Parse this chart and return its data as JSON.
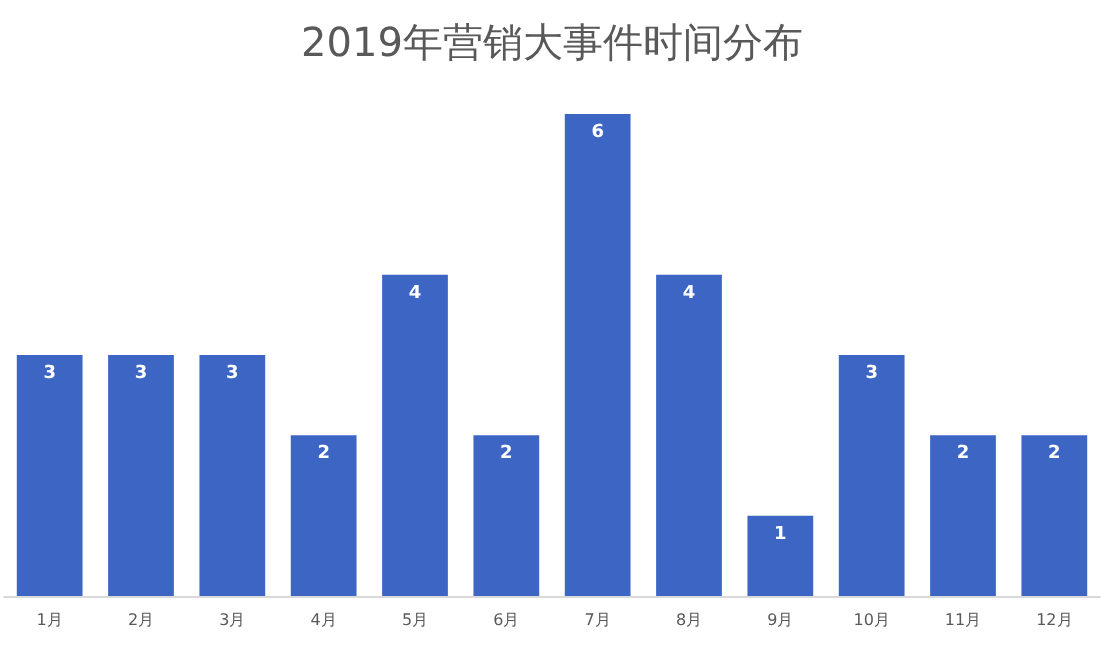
{
  "chart_data": {
    "type": "bar",
    "title": "2019年营销大事件时间分布",
    "categories": [
      "1月",
      "2月",
      "3月",
      "4月",
      "5月",
      "6月",
      "7月",
      "8月",
      "9月",
      "10月",
      "11月",
      "12月"
    ],
    "values": [
      3,
      3,
      3,
      2,
      4,
      2,
      6,
      4,
      1,
      3,
      2,
      2
    ],
    "color": "#3d66c4",
    "data_labels": true
  }
}
